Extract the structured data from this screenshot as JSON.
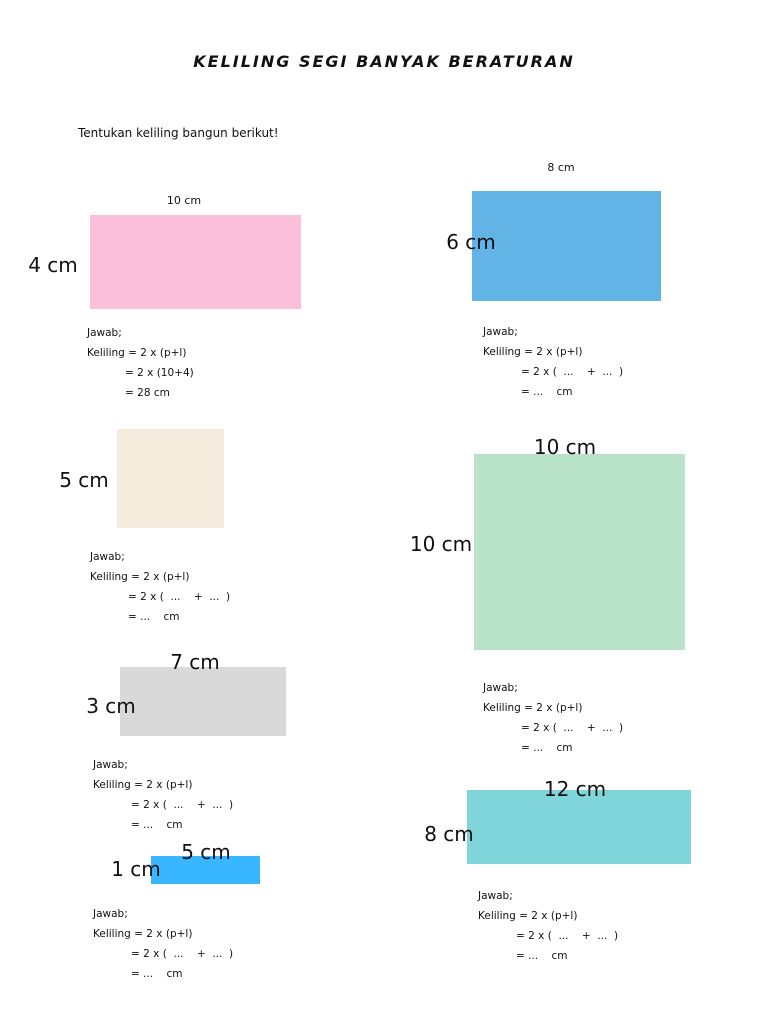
{
  "header": {
    "title": "KELILING SEGI BANYAK BERATURAN",
    "instruction": "Tentukan keliling bangun berikut!"
  },
  "shapes": [
    {
      "labels": [
        "10 cm",
        "4 cm"
      ],
      "answer": [
        "Jawab;",
        "Keliling = 2 x (p+l)",
        "= 2 x (10+4)",
        "= 28 cm"
      ]
    },
    {
      "labels": [
        "8 cm",
        "6 cm"
      ],
      "answer": [
        "Jawab;",
        "Keliling = 2 x (p+l)",
        "= 2 x (  ...    +  ...  )",
        "= ...    cm"
      ]
    },
    {
      "labels": [
        "5 cm"
      ],
      "answer": [
        "Jawab;",
        "Keliling = 2 x (p+l)",
        "= 2 x (  ...    +  ...  )",
        "= ...    cm"
      ]
    },
    {
      "labels": [
        "10 cm",
        "10 cm"
      ],
      "answer": [
        "Jawab;",
        "Keliling = 2 x (p+l)",
        "= 2 x (  ...    +  ...  )",
        "= ...    cm"
      ]
    },
    {
      "labels": [
        "7 cm",
        "3 cm"
      ],
      "answer": [
        "Jawab;",
        "Keliling = 2 x (p+l)",
        "= 2 x (  ...    +  ...  )",
        "= ...    cm"
      ]
    },
    {
      "labels": [
        "12 cm",
        "8 cm"
      ],
      "answer": [
        "Jawab;",
        "Keliling = 2 x (p+l)",
        "= 2 x (  ...    +  ...  )",
        "= ...    cm"
      ]
    },
    {
      "labels": [
        "5 cm",
        "1 cm"
      ],
      "answer": [
        "Jawab;",
        "Keliling = 2 x (p+l)",
        "= 2 x (  ...    +  ...  )",
        "= ...    cm"
      ]
    }
  ]
}
